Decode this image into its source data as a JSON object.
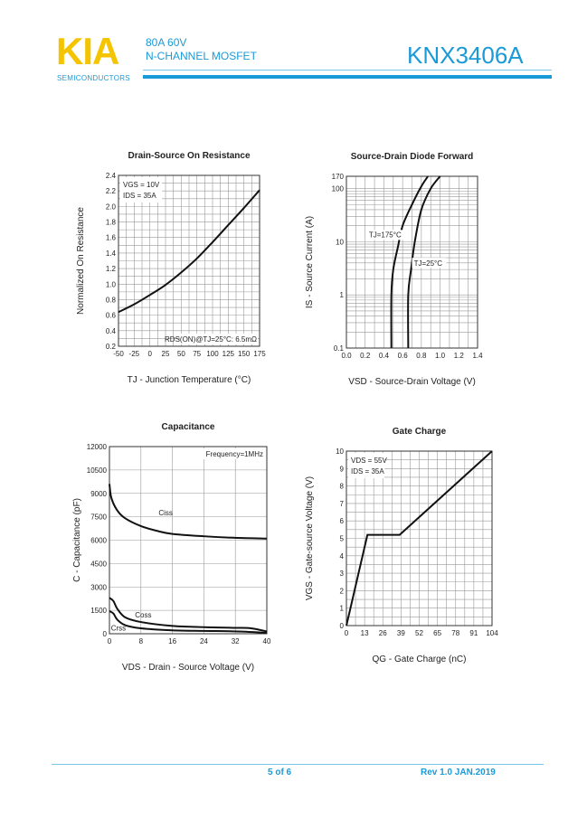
{
  "header": {
    "logo": "KIA",
    "logo_sub": "SEMICONDUCTORS",
    "rating": "80A 60V",
    "type": "N-CHANNEL MOSFET",
    "part_number": "KNX3406A",
    "colors": {
      "logo": "#f5c400",
      "brand_blue": "#1a9ad6"
    }
  },
  "footer": {
    "page": "5 of 6",
    "revision": "Rev 1.0 JAN.2019"
  },
  "chart_data": [
    {
      "type": "line",
      "title": "Drain-Source On Resistance",
      "xlabel": "TJ - Junction Temperature (°C)",
      "ylabel": "Normalized On Resistance",
      "xlim": [
        -50,
        175
      ],
      "ylim": [
        0.2,
        2.4
      ],
      "xticks": [
        -50,
        -25,
        0,
        25,
        50,
        75,
        100,
        125,
        150,
        175
      ],
      "yticks": [
        0.2,
        0.4,
        0.6,
        0.8,
        1.0,
        1.2,
        1.4,
        1.6,
        1.8,
        2.0,
        2.2,
        2.4
      ],
      "ytick_labels": [
        "0.2",
        "0.4",
        "0.6",
        "0.8",
        "1.0",
        "1.2",
        "1.4",
        "1.6",
        "1.8",
        "2.0",
        "2.2",
        "2.4"
      ],
      "grid": true,
      "annotations": [
        "VGS = 10V",
        "IDS = 35A",
        "RDS(ON)@TJ=25°C: 6.5mΩ"
      ],
      "series": [
        {
          "x": [
            -50,
            -25,
            0,
            25,
            50,
            75,
            100,
            125,
            150,
            175
          ],
          "y": [
            0.64,
            0.74,
            0.86,
            0.99,
            1.15,
            1.33,
            1.54,
            1.76,
            1.98,
            2.21
          ]
        }
      ]
    },
    {
      "type": "line",
      "title": "Source-Drain Diode Forward",
      "xlabel": "VSD - Source-Drain Voltage (V)",
      "ylabel": "IS - Source Current (A)",
      "xlim": [
        0,
        1.4
      ],
      "ylim": [
        0.1,
        170
      ],
      "yscale": "log",
      "xticks": [
        0,
        0.2,
        0.4,
        0.6,
        0.8,
        1.0,
        1.2,
        1.4
      ],
      "xtick_labels": [
        "0.0",
        "0.2",
        "0.4",
        "0.6",
        "0.8",
        "1.0",
        "1.2",
        "1.4"
      ],
      "yticks": [
        0.1,
        1,
        10,
        100,
        170
      ],
      "ytick_labels": [
        "0.1",
        "1",
        "10",
        "100",
        "170"
      ],
      "grid": true,
      "series": [
        {
          "name": "TJ=175°C",
          "x": [
            0.48,
            0.48,
            0.5,
            0.55,
            0.6,
            0.7,
            0.8,
            0.87
          ],
          "y": [
            0.1,
            1,
            3,
            8,
            20,
            50,
            110,
            170
          ]
        },
        {
          "name": "TJ=25°C",
          "x": [
            0.66,
            0.66,
            0.69,
            0.73,
            0.8,
            0.9,
            1.0
          ],
          "y": [
            0.1,
            1,
            3,
            10,
            40,
            100,
            170
          ]
        }
      ]
    },
    {
      "type": "line",
      "title": "Capacitance",
      "xlabel": "VDS - Drain - Source Voltage (V)",
      "ylabel": "C - Capacitance (pF)",
      "xlim": [
        0,
        40
      ],
      "ylim": [
        0,
        12000
      ],
      "xticks": [
        0,
        8,
        16,
        24,
        32,
        40
      ],
      "yticks": [
        0,
        1500,
        3000,
        4500,
        6000,
        7500,
        9000,
        10500,
        12000
      ],
      "grid": true,
      "annotations": [
        "Frequency=1MHz"
      ],
      "series": [
        {
          "name": "Ciss",
          "x": [
            0,
            0.5,
            2,
            4,
            8,
            12,
            16,
            24,
            32,
            40
          ],
          "y": [
            9600,
            8700,
            7900,
            7400,
            6900,
            6600,
            6400,
            6250,
            6150,
            6100
          ]
        },
        {
          "name": "Coss",
          "x": [
            0,
            1,
            2,
            4,
            8,
            16,
            24,
            32,
            36,
            40
          ],
          "y": [
            2300,
            2100,
            1600,
            1050,
            750,
            500,
            420,
            380,
            350,
            150
          ]
        },
        {
          "name": "Crss",
          "x": [
            0,
            1,
            2,
            4,
            8,
            16,
            24,
            32,
            40
          ],
          "y": [
            1450,
            1300,
            900,
            550,
            350,
            220,
            180,
            150,
            60
          ]
        }
      ]
    },
    {
      "type": "line",
      "title": "Gate Charge",
      "xlabel": "QG - Gate Charge (nC)",
      "ylabel": "VGS - Gate-source Voltage (V)",
      "xlim": [
        0,
        104
      ],
      "ylim": [
        0,
        10
      ],
      "xticks": [
        0,
        13,
        26,
        39,
        52,
        65,
        78,
        91,
        104
      ],
      "yticks": [
        0,
        1,
        2,
        3,
        4,
        5,
        6,
        7,
        8,
        9,
        10
      ],
      "grid": true,
      "annotations": [
        "VDS = 55V",
        "IDS = 35A"
      ],
      "series": [
        {
          "x": [
            0,
            15,
            38,
            104
          ],
          "y": [
            0,
            5.2,
            5.2,
            10
          ]
        }
      ]
    }
  ]
}
